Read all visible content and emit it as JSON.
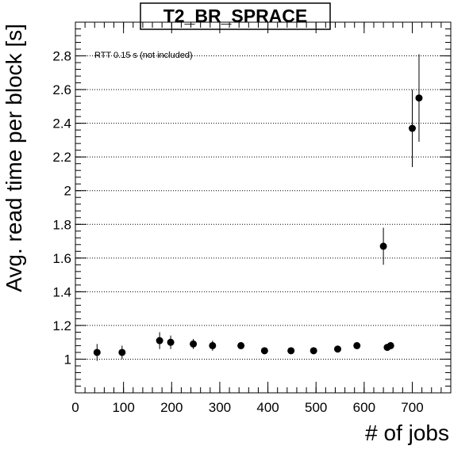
{
  "chart_data": {
    "type": "scatter",
    "title": "T2_BR_SPRACE",
    "xlabel": "# of jobs",
    "ylabel": "Avg. read time per block [s]",
    "annotation": "RTT 0.15 s (not included)",
    "xlim": [
      0,
      780
    ],
    "ylim": [
      0.8,
      3.0
    ],
    "x_ticks": [
      0,
      100,
      200,
      300,
      400,
      500,
      600,
      700
    ],
    "y_ticks": [
      1,
      1.2,
      1.4,
      1.6,
      1.8,
      2,
      2.2,
      2.4,
      2.6,
      2.8
    ],
    "y_tick_labels": [
      "1",
      "1.2",
      "1.4",
      "1.6",
      "1.8",
      "2",
      "2.2",
      "2.4",
      "2.6",
      "2.8"
    ],
    "grid": "horizontal dotted at major y ticks",
    "points": [
      {
        "x": 45,
        "y": 1.04,
        "yerr": 0.05
      },
      {
        "x": 97,
        "y": 1.04,
        "yerr": 0.04
      },
      {
        "x": 175,
        "y": 1.11,
        "yerr": 0.05
      },
      {
        "x": 198,
        "y": 1.1,
        "yerr": 0.04
      },
      {
        "x": 245,
        "y": 1.09,
        "yerr": 0.03
      },
      {
        "x": 285,
        "y": 1.08,
        "yerr": 0.03
      },
      {
        "x": 344,
        "y": 1.08,
        "yerr": 0.02
      },
      {
        "x": 393,
        "y": 1.05,
        "yerr": 0.02
      },
      {
        "x": 448,
        "y": 1.05,
        "yerr": 0.015
      },
      {
        "x": 495,
        "y": 1.05,
        "yerr": 0.015
      },
      {
        "x": 545,
        "y": 1.06,
        "yerr": 0.015
      },
      {
        "x": 585,
        "y": 1.08,
        "yerr": 0.015
      },
      {
        "x": 640,
        "y": 1.67,
        "yerr": 0.11
      },
      {
        "x": 648,
        "y": 1.07,
        "yerr": 0.015
      },
      {
        "x": 655,
        "y": 1.08,
        "yerr": 0.015
      },
      {
        "x": 700,
        "y": 2.37,
        "yerr": 0.23
      },
      {
        "x": 714,
        "y": 2.55,
        "yerr": 0.26
      }
    ],
    "colors": {
      "marker": "#000000",
      "grid": "#000000",
      "frame": "#000000"
    }
  }
}
